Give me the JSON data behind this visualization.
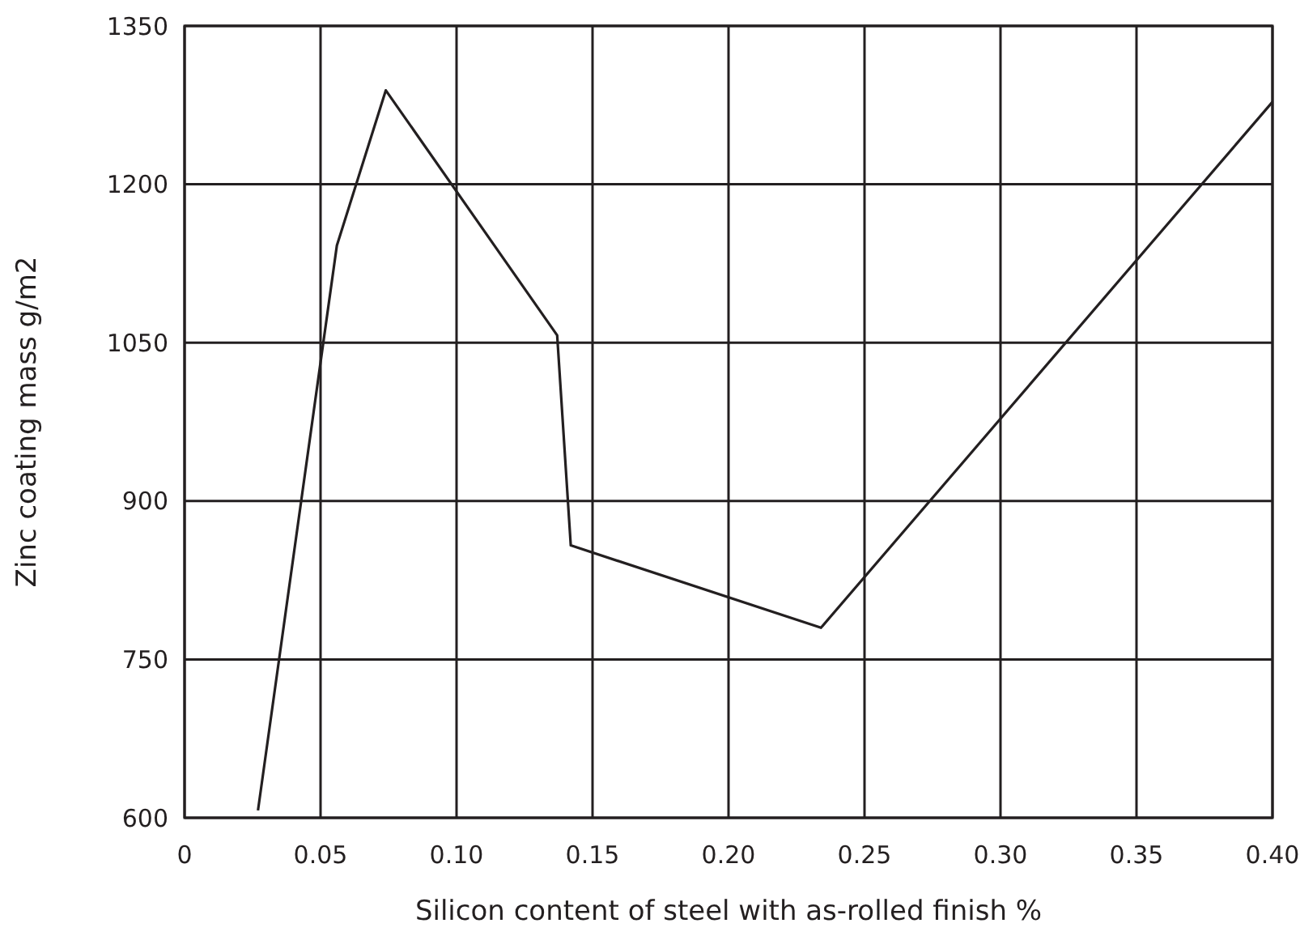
{
  "chart_data": {
    "type": "line",
    "xlabel": "Silicon content of steel with as-rolled finish %",
    "ylabel": "Zinc coating mass g/m2",
    "x": [
      0.027,
      0.056,
      0.074,
      0.137,
      0.142,
      0.234,
      0.4
    ],
    "series": [
      {
        "color": "#231f20",
        "values": [
          607,
          1142,
          1289,
          1057,
          858,
          780,
          1278
        ]
      }
    ],
    "xlim": [
      0,
      0.4
    ],
    "xticks": [
      {
        "value": 0,
        "label": "0"
      },
      {
        "value": 0.05,
        "label": "0.05"
      },
      {
        "value": 0.1,
        "label": "0.10"
      },
      {
        "value": 0.15,
        "label": "0.15"
      },
      {
        "value": 0.2,
        "label": "0.20"
      },
      {
        "value": 0.25,
        "label": "0.25"
      },
      {
        "value": 0.3,
        "label": "0.30"
      },
      {
        "value": 0.35,
        "label": "0.35"
      },
      {
        "value": 0.4,
        "label": "0.40"
      }
    ],
    "ylim": [
      600,
      1350
    ],
    "yticks": [
      600,
      750,
      900,
      1050,
      1200,
      1350
    ],
    "grid": true,
    "marker": "none",
    "line_style": "solid"
  }
}
